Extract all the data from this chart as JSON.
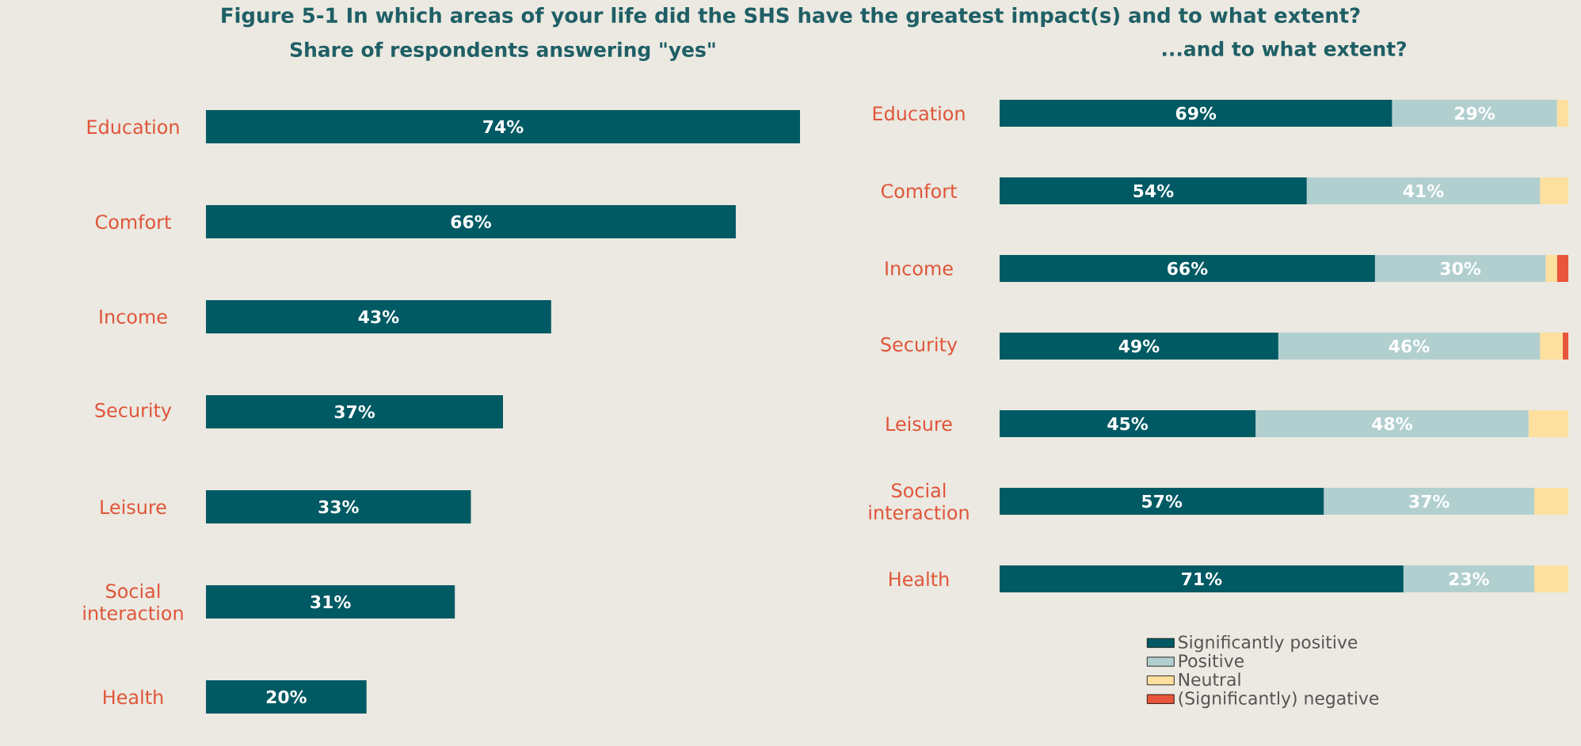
{
  "chart_data": [
    {
      "type": "other",
      "title": "Figure 5-1 In which areas of your life did the SHS have the greatest impact(s) and to what extent?"
    },
    {
      "type": "bar",
      "orientation": "horizontal",
      "title": "Share of respondents answering \"yes\"",
      "categories": [
        "Education",
        "Comfort",
        "Income",
        "Security",
        "Leisure",
        "Social interaction",
        "Health"
      ],
      "values": [
        74,
        66,
        43,
        37,
        33,
        31,
        20
      ],
      "value_labels": [
        "74%",
        "66%",
        "43%",
        "37%",
        "33%",
        "31%",
        "20%"
      ],
      "color": "#005a64"
    },
    {
      "type": "bar",
      "orientation": "horizontal",
      "stacked": true,
      "title": "...and to what extent?",
      "categories": [
        "Education",
        "Comfort",
        "Income",
        "Security",
        "Leisure",
        "Social interaction",
        "Health"
      ],
      "legend": "bottom",
      "series": [
        {
          "name": "Significantly positive",
          "color": "#005a64",
          "values": [
            69,
            54,
            66,
            49,
            45,
            57,
            71
          ],
          "value_labels": [
            "69%",
            "54%",
            "66%",
            "49%",
            "45%",
            "57%",
            "71%"
          ]
        },
        {
          "name": "Positive",
          "color": "#b2cfcf",
          "values": [
            29,
            41,
            30,
            46,
            48,
            37,
            23
          ],
          "value_labels": [
            "29%",
            "41%",
            "30%",
            "46%",
            "48%",
            "37%",
            "23%"
          ]
        },
        {
          "name": "Neutral",
          "color": "#fddf9e",
          "values": [
            2,
            5,
            2,
            4,
            7,
            6,
            6
          ]
        },
        {
          "name": "(Significantly) negative",
          "color": "#e8553a",
          "values": [
            0,
            0,
            2,
            1,
            0,
            0,
            0
          ]
        }
      ]
    }
  ]
}
